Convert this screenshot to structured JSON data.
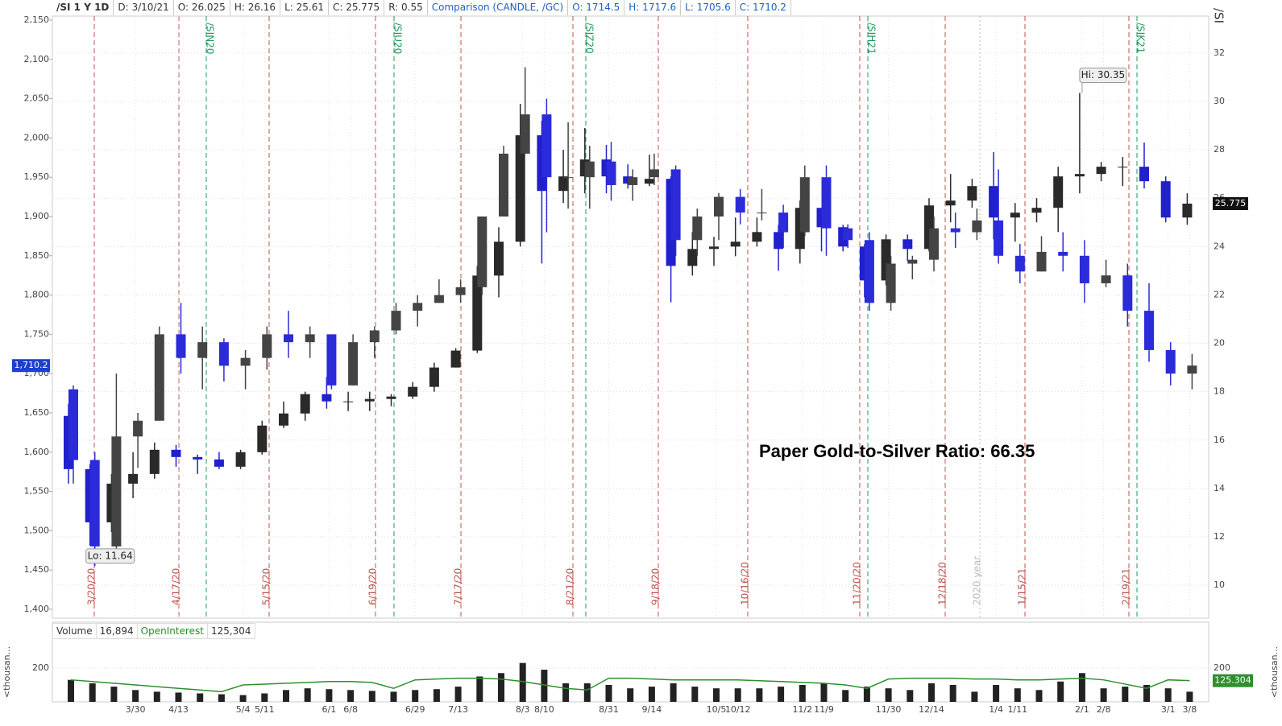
{
  "header": {
    "symbol": "/SI 1 Y 1D",
    "items": [
      "D: 3/10/21",
      "O: 26.025",
      "H: 26.16",
      "L: 25.61",
      "C: 25.775",
      "R: 0.55"
    ],
    "comparison": "Comparison (CANDLE, /GC)",
    "comparison_items": [
      "O: 1714.5",
      "H: 1717.6",
      "L: 1705.6",
      "C: 1710.2"
    ],
    "corner": "/SI"
  },
  "chart_data": [
    {
      "type": "candlestick",
      "annotation": "Paper Gold-to-Silver Ratio: 66.35",
      "ylim": [
        1388.7,
        2150
      ],
      "yticks": [
        {
          "value": 1400,
          "label": "1,400"
        },
        {
          "value": 1450,
          "label": "1,450"
        },
        {
          "value": 1500,
          "label": "1,500"
        },
        {
          "value": 1550,
          "label": "1,550"
        },
        {
          "value": 1600,
          "label": "1,600"
        },
        {
          "value": 1650,
          "label": "1,650"
        },
        {
          "value": 1700,
          "label": "1,700"
        },
        {
          "value": 1750,
          "label": "1,750"
        },
        {
          "value": 1800,
          "label": "1,800"
        },
        {
          "value": 1850,
          "label": "1,850"
        },
        {
          "value": 1900,
          "label": "1,900"
        },
        {
          "value": 1950,
          "label": "1,950"
        },
        {
          "value": 2000,
          "label": "2,000"
        },
        {
          "value": 2050,
          "label": "2,050"
        },
        {
          "value": 2100,
          "label": "2,100"
        },
        {
          "value": 2150,
          "label": "2,150"
        }
      ],
      "y2lim": [
        8.64,
        33.36
      ],
      "y2ticks": [
        10,
        12,
        14,
        16,
        18,
        20,
        22,
        24,
        26,
        28,
        30,
        32
      ],
      "grid": true,
      "markers": [
        {
          "label": "3/20/20",
          "color": "#c0504d"
        },
        {
          "label": "4/17/20",
          "color": "#c0504d"
        },
        {
          "label": "/SIN20",
          "color": "#1e9a5a"
        },
        {
          "label": "5/15/20",
          "color": "#c0504d"
        },
        {
          "label": "6/19/20",
          "color": "#c0504d"
        },
        {
          "label": "/SIU20",
          "color": "#1e9a5a"
        },
        {
          "label": "7/17/20",
          "color": "#c0504d"
        },
        {
          "label": "8/21/20",
          "color": "#c0504d"
        },
        {
          "label": "/SIZ20",
          "color": "#1e9a5a"
        },
        {
          "label": "9/18/20",
          "color": "#c0504d"
        },
        {
          "label": "10/16/20",
          "color": "#c0504d"
        },
        {
          "label": "11/20/20",
          "color": "#c0504d"
        },
        {
          "label": "/SIH21",
          "color": "#1e9a5a"
        },
        {
          "label": "12/18/20",
          "color": "#c0504d"
        },
        {
          "label": "2020 year",
          "color": "#bbbbbb"
        },
        {
          "label": "1/15/21",
          "color": "#c0504d"
        },
        {
          "label": "2/19/21",
          "color": "#c0504d"
        },
        {
          "label": "/SIK21",
          "color": "#1e9a5a"
        }
      ],
      "series": [
        {
          "axis": "y2",
          "up_color": "#2a2a2a",
          "down_color": "#2020cc",
          "last_label": "25.775",
          "last_label_color": "#111111",
          "high_label": "Hi: 30.35",
          "low_label": "Lo: 11.64",
          "open": [
            17.0,
            14.8,
            12.6,
            14.2,
            14.6,
            15.6,
            15.3,
            15.2,
            14.9,
            15.5,
            16.6,
            17.1,
            17.9,
            17.6,
            17.6,
            17.7,
            17.8,
            18.2,
            19.0,
            19.7,
            22.8,
            24.2,
            28.6,
            26.3,
            26.9,
            27.6,
            26.9,
            26.6,
            26.8,
            23.2,
            23.9,
            24.0,
            24.2,
            24.6,
            23.9,
            25.6,
            24.8,
            24.0,
            22.6,
            24.3,
            23.9,
            25.7,
            25.9,
            26.5,
            25.2,
            25.4,
            25.6,
            26.9,
            27.0,
            27.3,
            27.3,
            26.7,
            25.2
          ],
          "high": [
            17.5,
            15.0,
            14.6,
            15.5,
            15.9,
            15.8,
            15.4,
            15.5,
            15.6,
            16.8,
            17.6,
            18.0,
            18.6,
            18.0,
            18.0,
            17.9,
            18.4,
            19.2,
            19.8,
            23.2,
            24.8,
            29.9,
            29.2,
            28.0,
            28.9,
            28.2,
            27.4,
            27.8,
            26.9,
            24.6,
            24.4,
            25.2,
            25.2,
            24.9,
            25.9,
            25.6,
            24.9,
            24.1,
            24.5,
            24.5,
            26.0,
            27.0,
            26.8,
            27.9,
            25.8,
            26.0,
            27.3,
            30.35,
            27.5,
            27.7,
            28.3,
            26.9,
            26.2
          ],
          "low": [
            14.2,
            11.64,
            12.2,
            13.6,
            14.4,
            14.9,
            14.6,
            14.8,
            14.8,
            15.4,
            16.5,
            16.8,
            17.3,
            17.2,
            17.2,
            17.4,
            17.7,
            18.0,
            19.0,
            19.6,
            21.9,
            24.0,
            23.3,
            25.8,
            26.2,
            26.2,
            26.4,
            26.5,
            21.7,
            22.8,
            23.2,
            23.6,
            24.0,
            23.0,
            23.3,
            23.8,
            23.8,
            21.9,
            22.4,
            23.4,
            23.8,
            25.0,
            25.6,
            24.3,
            24.2,
            25.0,
            24.6,
            26.2,
            26.7,
            26.5,
            26.4,
            25.0,
            24.9
          ],
          "close": [
            14.8,
            12.6,
            14.2,
            14.6,
            15.6,
            15.3,
            15.2,
            14.9,
            15.5,
            16.6,
            17.1,
            17.9,
            17.6,
            17.6,
            17.7,
            17.8,
            18.2,
            19.0,
            19.7,
            22.8,
            24.2,
            28.6,
            26.3,
            26.9,
            27.6,
            26.9,
            26.6,
            26.8,
            23.2,
            23.9,
            24.0,
            24.2,
            24.6,
            23.9,
            25.6,
            24.8,
            24.0,
            22.6,
            24.3,
            23.9,
            25.7,
            25.9,
            26.5,
            25.2,
            25.4,
            25.6,
            26.9,
            27.0,
            27.3,
            27.3,
            26.7,
            25.2,
            25.775
          ]
        },
        {
          "axis": "y",
          "up_color": "#444444",
          "down_color": "#2b2bd9",
          "last_label": "1,710.2",
          "last_label_color": "#1f3fd0",
          "open": [
            1680,
            1590,
            1480,
            1620,
            1640,
            1750,
            1720,
            1740,
            1710,
            1720,
            1750,
            1740,
            1750,
            1685,
            1740,
            1755,
            1780,
            1790,
            1800,
            1810,
            1900,
            1980,
            2030,
            1950,
            1950,
            1970,
            1940,
            1950,
            1960,
            1870,
            1900,
            1925,
            1905,
            1905,
            1880,
            1950,
            1885,
            1870,
            1790,
            1840,
            1845,
            1885,
            1880,
            1895,
            1850,
            1830,
            1855,
            1850,
            1815,
            1825,
            1780,
            1730,
            1700
          ],
          "high": [
            1685,
            1600,
            1700,
            1650,
            1760,
            1790,
            1760,
            1745,
            1730,
            1760,
            1780,
            1760,
            1750,
            1750,
            1760,
            1790,
            1800,
            1820,
            1820,
            1900,
            1990,
            2090,
            2050,
            2020,
            1990,
            1995,
            1960,
            1980,
            1965,
            1910,
            1930,
            1935,
            1935,
            1915,
            1965,
            1965,
            1890,
            1880,
            1850,
            1850,
            1900,
            1905,
            1910,
            1960,
            1865,
            1875,
            1880,
            1870,
            1845,
            1840,
            1815,
            1740,
            1725
          ],
          "low": [
            1560,
            1455,
            1470,
            1580,
            1640,
            1700,
            1680,
            1690,
            1680,
            1705,
            1720,
            1720,
            1680,
            1685,
            1720,
            1750,
            1760,
            1790,
            1790,
            1800,
            1900,
            1980,
            1880,
            1910,
            1910,
            1920,
            1920,
            1940,
            1850,
            1850,
            1870,
            1890,
            1895,
            1860,
            1875,
            1850,
            1860,
            1780,
            1780,
            1820,
            1830,
            1860,
            1870,
            1840,
            1815,
            1830,
            1830,
            1790,
            1810,
            1760,
            1715,
            1685,
            1680
          ],
          "close": [
            1590,
            1480,
            1620,
            1640,
            1750,
            1720,
            1740,
            1710,
            1720,
            1750,
            1740,
            1750,
            1685,
            1740,
            1755,
            1780,
            1790,
            1800,
            1810,
            1900,
            1980,
            2030,
            1950,
            1950,
            1970,
            1940,
            1950,
            1960,
            1870,
            1900,
            1925,
            1905,
            1905,
            1880,
            1950,
            1885,
            1870,
            1790,
            1840,
            1845,
            1885,
            1880,
            1895,
            1850,
            1830,
            1855,
            1850,
            1815,
            1825,
            1780,
            1730,
            1700,
            1710.2
          ]
        }
      ]
    },
    {
      "type": "bar",
      "ylabel": "<thousan...",
      "categories": [
        null,
        null,
        null,
        "3/30",
        null,
        "4/13",
        null,
        null,
        "5/4",
        "5/11",
        null,
        null,
        "6/1",
        "6/8",
        null,
        null,
        "6/29",
        null,
        "7/13",
        null,
        null,
        "8/3",
        "8/10",
        null,
        null,
        "8/31",
        null,
        "9/14",
        null,
        null,
        "10/5",
        "10/12",
        null,
        null,
        "11/2",
        "11/9",
        null,
        null,
        "11/30",
        null,
        "12/14",
        null,
        null,
        "1/4",
        "1/11",
        null,
        null,
        "2/1",
        "2/8",
        null,
        null,
        "3/1",
        "3/8"
      ],
      "ylim": [
        0,
        357
      ],
      "yticks": [
        200
      ],
      "series": [
        {
          "name": "Volume",
          "last_label": "16,894",
          "color": "#222222",
          "values": [
            130,
            110,
            90,
            70,
            60,
            55,
            50,
            45,
            40,
            50,
            70,
            80,
            75,
            70,
            65,
            60,
            70,
            75,
            90,
            150,
            170,
            230,
            190,
            110,
            110,
            100,
            80,
            90,
            110,
            90,
            80,
            80,
            80,
            90,
            100,
            110,
            70,
            90,
            80,
            70,
            110,
            100,
            60,
            100,
            80,
            70,
            120,
            170,
            80,
            90,
            100,
            80,
            60
          ]
        },
        {
          "name": "OpenInterest",
          "last_label": "125,304",
          "tag_label": "125.304",
          "color": "#2f8f2f",
          "type": "line",
          "values": [
            130,
            120,
            110,
            100,
            90,
            80,
            70,
            60,
            100,
            105,
            110,
            115,
            120,
            120,
            115,
            80,
            130,
            135,
            140,
            140,
            135,
            120,
            100,
            80,
            70,
            140,
            140,
            135,
            130,
            130,
            130,
            130,
            125,
            120,
            115,
            110,
            100,
            80,
            135,
            140,
            140,
            140,
            135,
            135,
            130,
            130,
            135,
            140,
            130,
            105,
            80,
            130,
            125.304
          ]
        }
      ]
    }
  ]
}
